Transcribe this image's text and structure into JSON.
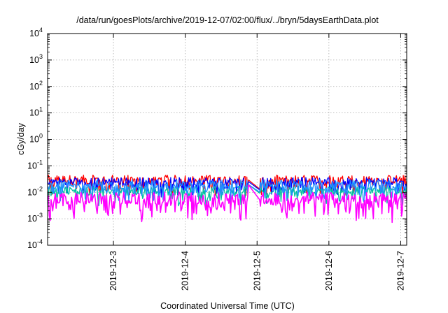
{
  "chart_data": {
    "type": "line",
    "title": "/data/run/goesPlots/archive/2019-12-07/02:00/flux/../bryn/5daysEarthData.plot",
    "xlabel": "Coordinated Universal Time (UTC)",
    "ylabel": "cGy/day",
    "yscale": "log",
    "ylim": [
      0.0001,
      10000
    ],
    "yticks": [
      {
        "value": 0.0001,
        "base": "10",
        "exp": "-4"
      },
      {
        "value": 0.001,
        "base": "10",
        "exp": "-3"
      },
      {
        "value": 0.01,
        "base": "10",
        "exp": "-2"
      },
      {
        "value": 0.1,
        "base": "10",
        "exp": "-1"
      },
      {
        "value": 1,
        "base": "10",
        "exp": "0"
      },
      {
        "value": 10,
        "base": "10",
        "exp": "1"
      },
      {
        "value": 100,
        "base": "10",
        "exp": "2"
      },
      {
        "value": 1000,
        "base": "10",
        "exp": "3"
      },
      {
        "value": 10000,
        "base": "10",
        "exp": "4"
      }
    ],
    "xlim": [
      "2019-12-02 02:00",
      "2019-12-07 02:00"
    ],
    "xticks": [
      "2019-12-3",
      "2019-12-4",
      "2019-12-5",
      "2019-12-6",
      "2019-12-7"
    ],
    "grid": true,
    "legend": "none",
    "gap": [
      "2019-12-04 21:00",
      "2019-12-05 01:00"
    ],
    "series": [
      {
        "color": "#ff0000",
        "base": 0.03,
        "spread": 0.35,
        "gapStart": 0.03,
        "gapEnd": 0.013
      },
      {
        "color": "#0000ff",
        "base": 0.026,
        "spread": 0.3,
        "gapStart": 0.026,
        "gapEnd": 0.012
      },
      {
        "color": "#00c0a0",
        "base": 0.012,
        "spread": 0.3,
        "gapStart": 0.02,
        "gapEnd": 0.009
      },
      {
        "color": "#1e90ff",
        "base": 0.02,
        "spread": 0.35,
        "gapStart": 0.02,
        "gapEnd": 0.01
      },
      {
        "color": "#ff00ff",
        "base": 0.006,
        "spread": 0.45,
        "gapStart": 0.02,
        "gapEnd": 0.005
      }
    ]
  }
}
